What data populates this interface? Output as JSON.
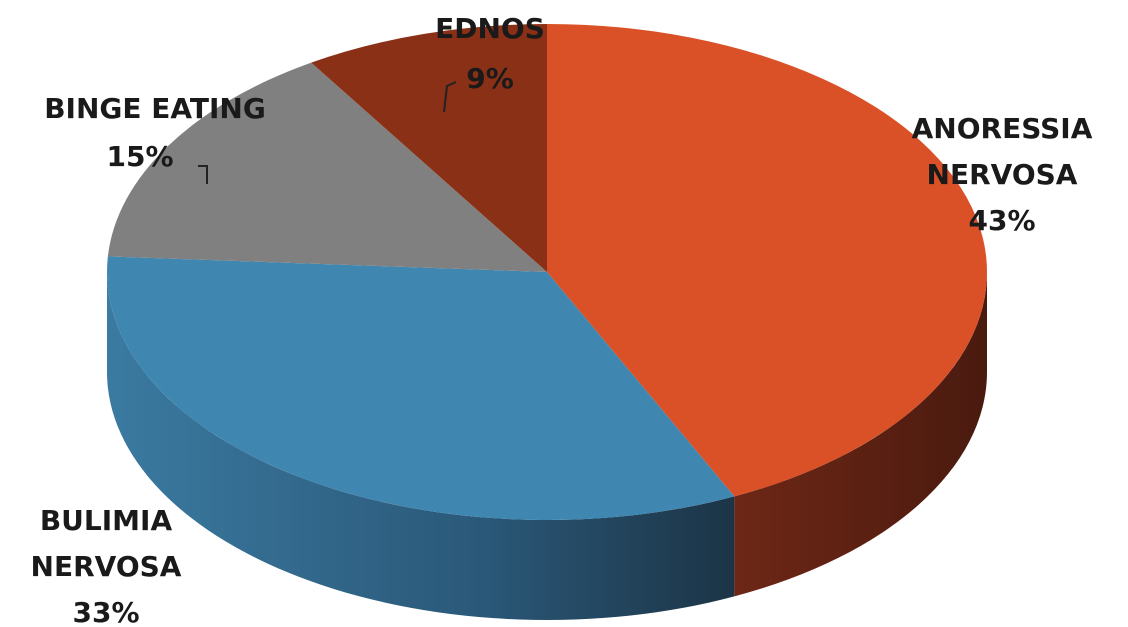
{
  "chart_data": {
    "type": "pie",
    "style": "3d",
    "slices": [
      {
        "label": "ANORESSIA NERVOSA",
        "label_lines": [
          "ANORESSIA",
          "NERVOSA"
        ],
        "value": 43,
        "value_label": "43%",
        "color": "#DB5127"
      },
      {
        "label": "BULIMIA NERVOSA",
        "label_lines": [
          "BULIMIA",
          "NERVOSA"
        ],
        "value": 33,
        "value_label": "33%",
        "color": "#3F86B1"
      },
      {
        "label": "BINGE EATING",
        "label_lines": [
          "BINGE EATING"
        ],
        "value": 15,
        "value_label": "15%",
        "color": "#808080"
      },
      {
        "label": "EDNOS",
        "label_lines": [
          "EDNOS"
        ],
        "value": 9,
        "value_label": "9%",
        "color": "#8A3016"
      }
    ]
  }
}
